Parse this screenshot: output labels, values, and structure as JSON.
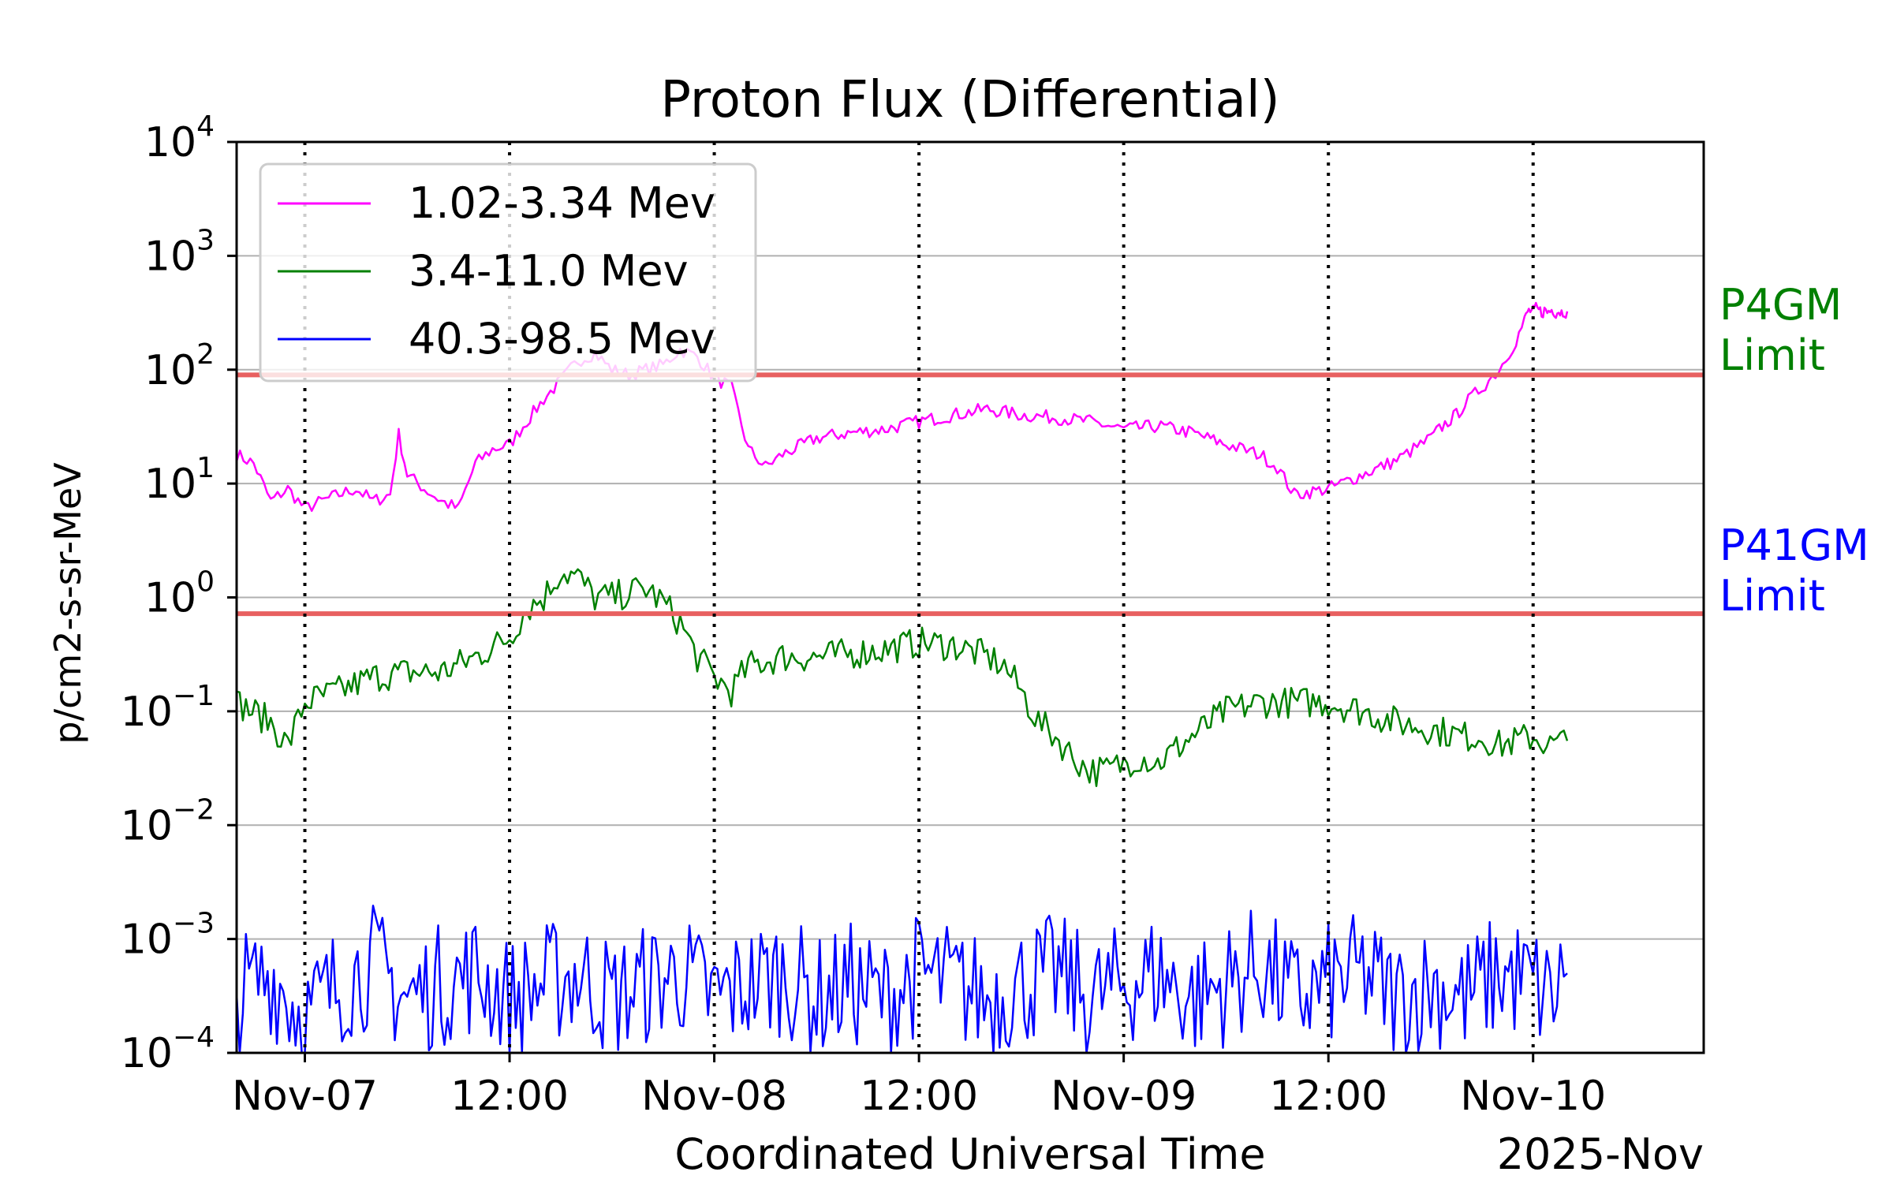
{
  "chart_data": {
    "type": "line",
    "title": "Proton Flux (Differential)",
    "xlabel": "Coordinated Universal Time",
    "xlabel_secondary": "2025-Nov",
    "ylabel": "p/cm2-s-sr-MeV",
    "yscale": "log",
    "ylim": [
      0.0001,
      10000
    ],
    "xlim": [
      "2025-11-06T20:00",
      "2025-11-10T10:00"
    ],
    "grid": "horizontal",
    "legend_position": "upper-left",
    "yticks": [
      {
        "base": "10",
        "exp": "4",
        "value": 10000
      },
      {
        "base": "10",
        "exp": "3",
        "value": 1000
      },
      {
        "base": "10",
        "exp": "2",
        "value": 100
      },
      {
        "base": "10",
        "exp": "1",
        "value": 10
      },
      {
        "base": "10",
        "exp": "0",
        "value": 1
      },
      {
        "base": "10",
        "exp": "−1",
        "value": 0.1
      },
      {
        "base": "10",
        "exp": "−2",
        "value": 0.01
      },
      {
        "base": "10",
        "exp": "−3",
        "value": 0.001
      },
      {
        "base": "10",
        "exp": "−4",
        "value": 0.0001
      }
    ],
    "xticks": [
      {
        "label": "Nov-07",
        "time": "2025-11-07T00:00"
      },
      {
        "label": "12:00",
        "time": "2025-11-07T12:00"
      },
      {
        "label": "Nov-08",
        "time": "2025-11-08T00:00"
      },
      {
        "label": "12:00",
        "time": "2025-11-08T12:00"
      },
      {
        "label": "Nov-09",
        "time": "2025-11-09T00:00"
      },
      {
        "label": "12:00",
        "time": "2025-11-09T12:00"
      },
      {
        "label": "Nov-10",
        "time": "2025-11-10T00:00"
      }
    ],
    "thresholds": [
      {
        "label_line1": "P4GM",
        "label_line2": "Limit",
        "value": 90,
        "color": "#e86060",
        "label_color": "#008000"
      },
      {
        "label_line1": "P41GM",
        "label_line2": "Limit",
        "value": 0.72,
        "color": "#e86060",
        "label_color": "#0000ff"
      }
    ],
    "series": [
      {
        "name": "1.02-3.34 Mev",
        "color": "#ff00ff",
        "x": [
          "2025-11-06T20:00",
          "2025-11-06T21:00",
          "2025-11-06T22:00",
          "2025-11-06T23:00",
          "2025-11-07T00:00",
          "2025-11-07T01:00",
          "2025-11-07T02:00",
          "2025-11-07T03:00",
          "2025-11-07T04:00",
          "2025-11-07T05:00",
          "2025-11-07T05:30",
          "2025-11-07T06:00",
          "2025-11-07T07:00",
          "2025-11-07T08:00",
          "2025-11-07T09:00",
          "2025-11-07T10:00",
          "2025-11-07T11:00",
          "2025-11-07T12:00",
          "2025-11-07T13:00",
          "2025-11-07T14:00",
          "2025-11-07T15:00",
          "2025-11-07T16:00",
          "2025-11-07T17:00",
          "2025-11-07T18:00",
          "2025-11-07T19:00",
          "2025-11-07T20:00",
          "2025-11-07T21:00",
          "2025-11-07T22:00",
          "2025-11-07T23:00",
          "2025-11-08T00:00",
          "2025-11-08T01:00",
          "2025-11-08T02:00",
          "2025-11-08T03:00",
          "2025-11-08T04:00",
          "2025-11-08T06:00",
          "2025-11-08T08:00",
          "2025-11-08T10:00",
          "2025-11-08T12:00",
          "2025-11-08T14:00",
          "2025-11-08T16:00",
          "2025-11-08T18:00",
          "2025-11-08T20:00",
          "2025-11-08T22:00",
          "2025-11-09T00:00",
          "2025-11-09T02:00",
          "2025-11-09T04:00",
          "2025-11-09T06:00",
          "2025-11-09T07:00",
          "2025-11-09T08:00",
          "2025-11-09T09:00",
          "2025-11-09T10:00",
          "2025-11-09T12:00",
          "2025-11-09T14:00",
          "2025-11-09T16:00",
          "2025-11-09T17:00",
          "2025-11-09T18:00",
          "2025-11-09T18:30",
          "2025-11-09T19:00",
          "2025-11-09T19:30",
          "2025-11-09T20:00",
          "2025-11-09T21:00",
          "2025-11-09T22:00",
          "2025-11-09T23:00",
          "2025-11-09T23:30",
          "2025-11-09T23:40",
          "2025-11-09T23:50",
          "2025-11-10T00:00",
          "2025-11-10T00:10",
          "2025-11-10T00:20",
          "2025-11-10T00:30",
          "2025-11-10T00:40",
          "2025-11-10T00:50",
          "2025-11-10T01:00",
          "2025-11-10T01:10",
          "2025-11-10T01:20",
          "2025-11-10T01:30",
          "2025-11-10T01:40",
          "2025-11-10T01:50",
          "2025-11-10T02:00"
        ],
        "y": [
          18,
          15,
          7,
          9,
          6,
          7,
          8,
          9,
          7,
          8,
          27,
          12,
          9,
          7,
          6,
          15,
          20,
          22,
          35,
          55,
          80,
          120,
          140,
          100,
          90,
          100,
          110,
          150,
          130,
          85,
          70,
          20,
          14,
          18,
          25,
          28,
          30,
          35,
          40,
          45,
          40,
          38,
          35,
          30,
          32,
          28,
          22,
          20,
          18,
          14,
          8,
          9,
          12,
          16,
          20,
          25,
          30,
          35,
          40,
          50,
          70,
          100,
          180,
          270,
          320,
          330,
          320,
          340,
          330,
          320,
          330,
          320,
          330,
          340,
          320,
          330,
          320,
          330,
          325
        ]
      },
      {
        "name": "3.4-11.0 Mev",
        "color": "#008000",
        "x": [
          "2025-11-06T20:00",
          "2025-11-06T22:00",
          "2025-11-06T23:00",
          "2025-11-07T00:00",
          "2025-11-07T02:00",
          "2025-11-07T04:00",
          "2025-11-07T06:00",
          "2025-11-07T08:00",
          "2025-11-07T10:00",
          "2025-11-07T12:00",
          "2025-11-07T13:00",
          "2025-11-07T14:00",
          "2025-11-07T15:00",
          "2025-11-07T16:00",
          "2025-11-07T17:00",
          "2025-11-07T18:00",
          "2025-11-07T19:00",
          "2025-11-07T20:00",
          "2025-11-07T21:00",
          "2025-11-07T22:00",
          "2025-11-07T23:00",
          "2025-11-08T00:00",
          "2025-11-08T01:00",
          "2025-11-08T02:00",
          "2025-11-08T04:00",
          "2025-11-08T06:00",
          "2025-11-08T08:00",
          "2025-11-08T10:00",
          "2025-11-08T12:00",
          "2025-11-08T14:00",
          "2025-11-08T16:00",
          "2025-11-08T17:00",
          "2025-11-08T18:00",
          "2025-11-08T19:00",
          "2025-11-08T20:00",
          "2025-11-08T21:00",
          "2025-11-08T22:00",
          "2025-11-08T23:00",
          "2025-11-09T00:00",
          "2025-11-09T01:00",
          "2025-11-09T02:00",
          "2025-11-09T04:00",
          "2025-11-09T06:00",
          "2025-11-09T08:00",
          "2025-11-09T10:00",
          "2025-11-09T12:00",
          "2025-11-09T14:00",
          "2025-11-09T16:00",
          "2025-11-09T18:00",
          "2025-11-09T20:00",
          "2025-11-09T21:00",
          "2025-11-09T22:00",
          "2025-11-10T00:00",
          "2025-11-10T01:00",
          "2025-11-10T02:00"
        ],
        "y": [
          0.12,
          0.08,
          0.05,
          0.12,
          0.15,
          0.2,
          0.22,
          0.22,
          0.3,
          0.45,
          0.8,
          1.0,
          1.7,
          1.5,
          1.0,
          1.0,
          1.1,
          1.2,
          0.9,
          0.6,
          0.3,
          0.2,
          0.15,
          0.25,
          0.3,
          0.3,
          0.32,
          0.35,
          0.4,
          0.38,
          0.3,
          0.25,
          0.15,
          0.08,
          0.06,
          0.04,
          0.03,
          0.03,
          0.035,
          0.04,
          0.035,
          0.06,
          0.1,
          0.12,
          0.12,
          0.12,
          0.1,
          0.08,
          0.07,
          0.06,
          0.06,
          0.05,
          0.06,
          0.05,
          0.055
        ]
      },
      {
        "name": "40.3-98.5 Mev",
        "color": "#0000ff",
        "x": [
          "2025-11-06T20:00",
          "2025-11-06T22:00",
          "2025-11-07T00:00",
          "2025-11-07T02:00",
          "2025-11-07T04:00",
          "2025-11-07T06:00",
          "2025-11-07T08:00",
          "2025-11-07T10:00",
          "2025-11-07T12:00",
          "2025-11-07T14:00",
          "2025-11-07T16:00",
          "2025-11-07T18:00",
          "2025-11-07T20:00",
          "2025-11-07T22:00",
          "2025-11-08T00:00",
          "2025-11-08T02:00",
          "2025-11-08T04:00",
          "2025-11-08T06:00",
          "2025-11-08T08:00",
          "2025-11-08T10:00",
          "2025-11-08T12:00",
          "2025-11-08T14:00",
          "2025-11-08T16:00",
          "2025-11-08T18:00",
          "2025-11-08T20:00",
          "2025-11-08T22:00",
          "2025-11-09T00:00",
          "2025-11-09T02:00",
          "2025-11-09T04:00",
          "2025-11-09T06:00",
          "2025-11-09T08:00",
          "2025-11-09T10:00",
          "2025-11-09T12:00",
          "2025-11-09T14:00",
          "2025-11-09T16:00",
          "2025-11-09T18:00",
          "2025-11-09T20:00",
          "2025-11-09T22:00",
          "2025-11-10T00:00",
          "2025-11-10T01:00",
          "2025-11-10T02:00"
        ],
        "y": [
          0.0003,
          0.0005,
          0.0002,
          0.0004,
          0.0006,
          0.0003,
          0.0004,
          0.0005,
          0.0003,
          0.0004,
          0.0005,
          0.0003,
          0.0004,
          0.0005,
          0.0003,
          0.0004,
          0.0005,
          0.0003,
          0.0004,
          0.0003,
          0.0005,
          0.0004,
          0.0003,
          0.0004,
          0.0005,
          0.0003,
          0.0004,
          0.0005,
          0.0003,
          0.0004,
          0.0006,
          0.0003,
          0.0004,
          0.0005,
          0.0003,
          0.0004,
          0.0003,
          0.0005,
          0.0004,
          0.0003,
          0.0005
        ]
      }
    ]
  }
}
